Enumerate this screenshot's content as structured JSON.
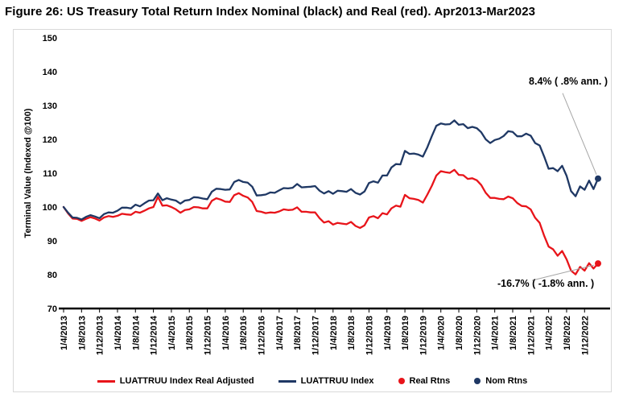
{
  "colors": {
    "nominal": "#1f3864",
    "real": "#e8141a",
    "leader": "#a6a6a6",
    "axis": "#000000",
    "frame_border": "#d9d9d9"
  },
  "chart_data": {
    "type": "line",
    "title": "Figure 26: US Treasury Total Return Index Nominal (black) and Real (red). Apr2013-Mar2023",
    "xlabel": "",
    "ylabel": "Terminal Value (Indexed @100)",
    "ylim": [
      70,
      150
    ],
    "y_ticks": [
      70,
      80,
      90,
      100,
      110,
      120,
      130,
      140,
      150
    ],
    "grid": false,
    "x_tick_labels": [
      "1/4/2013",
      "1/8/2013",
      "1/12/2013",
      "1/4/2014",
      "1/8/2014",
      "1/12/2014",
      "1/4/2015",
      "1/8/2015",
      "1/12/2015",
      "1/4/2016",
      "1/8/2016",
      "1/12/2016",
      "1/4/2017",
      "1/8/2017",
      "1/12/2017",
      "1/4/2018",
      "1/8/2018",
      "1/12/2018",
      "1/4/2019",
      "1/8/2019",
      "1/12/2019",
      "1/4/2020",
      "1/8/2020",
      "1/12/2020",
      "1/4/2021",
      "1/8/2021",
      "1/12/2021",
      "1/4/2022",
      "1/8/2022",
      "1/12/2022"
    ],
    "x_tick_month_indices": [
      0,
      4,
      8,
      12,
      16,
      20,
      24,
      28,
      32,
      36,
      40,
      44,
      48,
      52,
      56,
      60,
      64,
      68,
      72,
      76,
      80,
      84,
      88,
      92,
      96,
      100,
      104,
      108,
      112,
      116
    ],
    "x_frequency": "monthly, Apr 2013 - Mar 2023",
    "series": [
      {
        "name": "LUATTRUU Index Real Adjusted",
        "color_key": "real",
        "values": [
          100.0,
          98.1,
          96.6,
          96.5,
          95.9,
          96.5,
          97.0,
          96.6,
          96.0,
          96.9,
          97.3,
          97.1,
          97.4,
          98.0,
          97.8,
          97.7,
          98.6,
          98.3,
          98.9,
          99.6,
          100.0,
          103.0,
          100.4,
          100.5,
          100.0,
          99.3,
          98.3,
          99.1,
          99.3,
          100.0,
          99.9,
          99.6,
          99.6,
          101.8,
          102.6,
          102.2,
          101.6,
          101.5,
          103.5,
          104.1,
          103.3,
          102.8,
          101.5,
          98.8,
          98.6,
          98.2,
          98.4,
          98.3,
          98.7,
          99.3,
          99.1,
          99.2,
          99.9,
          98.6,
          98.6,
          98.4,
          98.4,
          96.7,
          95.4,
          95.8,
          94.8,
          95.3,
          95.1,
          94.9,
          95.6,
          94.4,
          93.8,
          94.6,
          96.9,
          97.3,
          96.7,
          98.2,
          97.8,
          99.6,
          100.4,
          100.1,
          103.6,
          102.6,
          102.4,
          102.1,
          101.3,
          103.7,
          106.3,
          109.3,
          110.6,
          110.3,
          110.1,
          111.0,
          109.5,
          109.4,
          108.3,
          108.5,
          107.9,
          106.5,
          104.2,
          102.7,
          102.7,
          102.4,
          102.3,
          103.1,
          102.6,
          101.2,
          100.3,
          100.2,
          99.3,
          96.8,
          95.3,
          91.5,
          88.3,
          87.5,
          85.6,
          87.0,
          84.5,
          81.2,
          80.1,
          82.3,
          81.2,
          83.4,
          81.8,
          83.3
        ]
      },
      {
        "name": "LUATTRUU Index",
        "color_key": "nominal",
        "values": [
          100.0,
          98.3,
          96.9,
          96.8,
          96.3,
          97.1,
          97.6,
          97.2,
          96.7,
          97.9,
          98.4,
          98.3,
          98.9,
          99.8,
          99.8,
          99.6,
          100.7,
          100.2,
          101.1,
          101.9,
          102.0,
          104.0,
          102.0,
          102.6,
          102.2,
          101.9,
          101.0,
          101.9,
          102.1,
          102.9,
          102.8,
          102.5,
          102.3,
          104.5,
          105.4,
          105.3,
          105.1,
          105.2,
          107.4,
          108.0,
          107.4,
          107.2,
          106.0,
          103.4,
          103.5,
          103.7,
          104.3,
          104.2,
          104.9,
          105.6,
          105.5,
          105.7,
          106.8,
          105.8,
          105.9,
          106.0,
          106.2,
          104.8,
          104.0,
          104.7,
          103.9,
          104.8,
          104.7,
          104.5,
          105.3,
          104.2,
          103.7,
          104.6,
          107.1,
          107.6,
          107.2,
          109.3,
          109.3,
          111.7,
          112.7,
          112.6,
          116.6,
          115.7,
          115.8,
          115.5,
          114.9,
          117.7,
          121.0,
          124.0,
          124.7,
          124.4,
          124.5,
          125.6,
          124.3,
          124.5,
          123.3,
          123.7,
          123.3,
          122.1,
          120.0,
          118.9,
          119.8,
          120.2,
          121.0,
          122.4,
          122.2,
          120.9,
          120.9,
          121.7,
          121.1,
          118.9,
          118.2,
          114.9,
          111.3,
          111.5,
          110.6,
          112.2,
          109.2,
          104.7,
          103.2,
          106.1,
          105.1,
          107.8,
          105.3,
          108.4
        ]
      }
    ],
    "end_values": {
      "nominal": 108.4,
      "real": 83.3
    },
    "annotations": [
      {
        "text": "8.4% ( .8% ann. )",
        "series": "LUATTRUU Index"
      },
      {
        "text": "-16.7% ( -1.8% ann. )",
        "series": "LUATTRUU Index Real Adjusted"
      }
    ],
    "legend": {
      "position": "bottom",
      "items": [
        {
          "swatch": "line",
          "color_key": "real",
          "label": "LUATTRUU Index Real Adjusted"
        },
        {
          "swatch": "line",
          "color_key": "nominal",
          "label": "LUATTRUU Index"
        },
        {
          "swatch": "dot",
          "color_key": "real",
          "label": "Real Rtns"
        },
        {
          "swatch": "dot",
          "color_key": "nominal",
          "label": "Nom Rtns"
        }
      ]
    }
  }
}
